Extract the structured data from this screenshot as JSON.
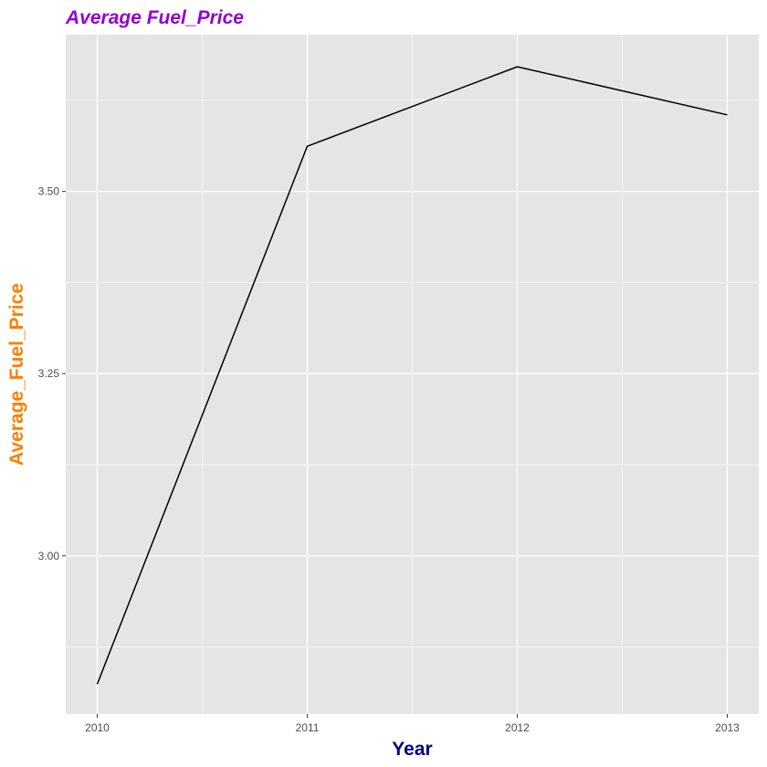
{
  "chart_data": {
    "type": "line",
    "title": "Average Fuel_Price",
    "xlabel": "Year",
    "ylabel": "Average_Fuel_Price",
    "x": [
      2010,
      2011,
      2012,
      2013
    ],
    "x_tick_labels": [
      "2010",
      "2011",
      "2012",
      "2013"
    ],
    "y_tick_values": [
      3.0,
      3.25,
      3.5
    ],
    "y_tick_labels": [
      "3.00",
      "3.25",
      "3.50"
    ],
    "series": [
      {
        "values": [
          2.824,
          3.562,
          3.671,
          3.605
        ]
      }
    ],
    "xlim": [
      2009.85,
      2013.15
    ],
    "ylim": [
      2.783,
      3.715
    ],
    "grid": true,
    "legend": "none"
  },
  "colors": {
    "title": "#9400D3",
    "xlabel": "#000080",
    "ylabel": "#FF7F00",
    "panel_background": "#E5E5E5",
    "grid": "#FFFFFF",
    "line": "#000000"
  }
}
